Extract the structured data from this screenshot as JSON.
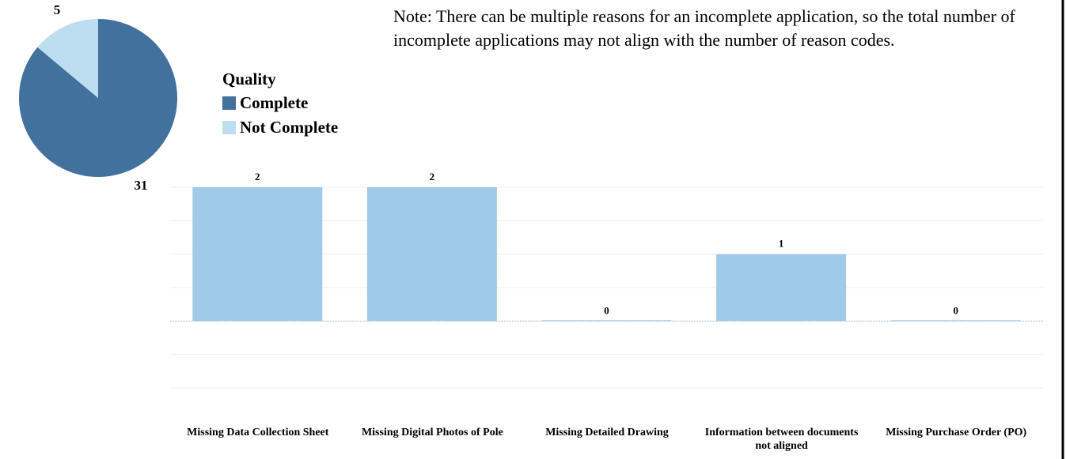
{
  "note": "Note: There can be multiple reasons for an incomplete application, so the total number of incomplete applications may not align with the number of reason codes.",
  "chart_data": [
    {
      "type": "pie",
      "legend_title": "Quality",
      "categories": [
        "Complete",
        "Not Complete"
      ],
      "values": [
        31,
        5
      ],
      "colors": [
        "#41719c",
        "#bdddf1"
      ]
    },
    {
      "type": "bar",
      "categories": [
        "Missing Data Collection Sheet",
        "Missing Digital Photos of Pole",
        "Missing Detailed Drawing",
        "Information between documents not aligned",
        "Missing Purchase Order (PO)"
      ],
      "values": [
        2,
        2,
        0,
        1,
        0
      ],
      "color": "#9fcbe9",
      "ylim": [
        -1,
        2
      ],
      "yticks": [
        -1,
        -0.5,
        0,
        0.5,
        1,
        1.5,
        2
      ],
      "grid": true
    }
  ]
}
